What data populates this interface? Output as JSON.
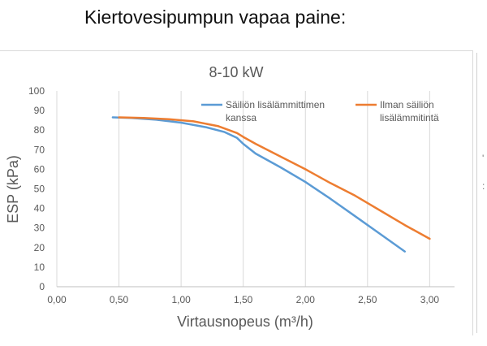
{
  "page": {
    "heading": "Kiertovesipumpun vapaa paine:"
  },
  "chart_data": {
    "type": "line",
    "title": "8-10 kW",
    "xlabel": "Virtausnopeus (m³/h)",
    "ylabel": "ESP (kPa)",
    "xlim": [
      0,
      3.2
    ],
    "ylim": [
      0,
      100
    ],
    "x_ticks": [
      0,
      0.5,
      1.0,
      1.5,
      2.0,
      2.5,
      3.0
    ],
    "x_tick_labels": [
      "0,00",
      "0,50",
      "1,00",
      "1,50",
      "2,00",
      "2,50",
      "3,00"
    ],
    "y_ticks": [
      0,
      10,
      20,
      30,
      40,
      50,
      60,
      70,
      80,
      90,
      100
    ],
    "y_tick_labels": [
      "0",
      "10",
      "20",
      "30",
      "40",
      "50",
      "60",
      "70",
      "80",
      "90",
      "100"
    ],
    "grid": {
      "vertical": true,
      "horizontal": false
    },
    "legend_placement": "top-right",
    "series": [
      {
        "name": "Säiliön lisälämmittimen kanssa",
        "legend_lines": [
          "Säiliön lisälämmittimen",
          "kanssa"
        ],
        "color": "#5b9bd5",
        "x": [
          0.45,
          0.6,
          0.8,
          1.0,
          1.2,
          1.35,
          1.45,
          1.5,
          1.6,
          1.8,
          2.0,
          2.2,
          2.4,
          2.6,
          2.8
        ],
        "y": [
          86.5,
          86.2,
          85.3,
          83.8,
          81.5,
          79,
          76,
          73,
          68,
          61,
          53.5,
          45,
          36,
          27,
          18
        ]
      },
      {
        "name": "Ilman säiliön lisälämmitintä",
        "legend_lines": [
          "Ilman säiliön",
          "lisälämmitintä"
        ],
        "color": "#ed7d31",
        "x": [
          0.5,
          0.7,
          0.9,
          1.1,
          1.3,
          1.45,
          1.5,
          1.6,
          1.8,
          2.0,
          2.2,
          2.4,
          2.6,
          2.8,
          3.0
        ],
        "y": [
          86.5,
          86.2,
          85.6,
          84.5,
          82,
          78.5,
          76.5,
          73,
          66.5,
          60,
          53,
          46.5,
          39,
          31.5,
          24.5
        ]
      }
    ]
  }
}
